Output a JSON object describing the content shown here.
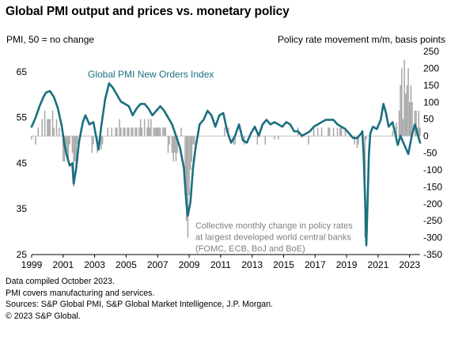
{
  "title": "Global PMI output and prices vs. monetary policy",
  "left_axis_label": "PMI, 50 = no change",
  "right_axis_label": "Policy rate movement  m/m, basis points",
  "series_label": "Global PMI New Orders Index",
  "annotation_lines": [
    "Collective monthly change in policy rates",
    "at largest developed world central banks",
    "(FOMC, ECB, BoJ and BoE)"
  ],
  "notes": [
    "Data compiled October 2023.",
    "PMI covers manufacturing and services.",
    "Sources: S&P Global PMI, S&P Global Market Intelligence, J.P. Morgan.",
    "© 2023 S&P Global."
  ],
  "colors": {
    "line": "#1a6f80",
    "bars": "#a6a6a6",
    "zero_line": "#bfbfbf",
    "annotation_text": "#808080",
    "series_label_text": "#1a6f80"
  },
  "chart_data": {
    "type": "line+bar",
    "x_tick_labels": [
      "1999",
      "2001",
      "2003",
      "2005",
      "2007",
      "2009",
      "2011",
      "2013",
      "2015",
      "2017",
      "2019",
      "2021",
      "2023"
    ],
    "x_range": [
      "1999-01",
      "2023-09"
    ],
    "left_axis": {
      "ticks": [
        25,
        35,
        45,
        55,
        65
      ],
      "range": [
        25,
        69.5
      ]
    },
    "right_axis": {
      "ticks": [
        -350,
        -300,
        -250,
        -200,
        -150,
        -100,
        -50,
        0,
        50,
        100,
        150,
        200,
        250
      ],
      "range": [
        -350,
        250
      ]
    },
    "line_series": {
      "name": "Global PMI New Orders Index",
      "axis": "left",
      "points": [
        [
          "1999-01",
          53.0
        ],
        [
          "1999-04",
          55.0
        ],
        [
          "1999-07",
          57.5
        ],
        [
          "1999-10",
          59.5
        ],
        [
          "1999-12",
          60.5
        ],
        [
          "2000-03",
          60.8
        ],
        [
          "2000-06",
          59.5
        ],
        [
          "2000-09",
          57.0
        ],
        [
          "2000-12",
          53.0
        ],
        [
          "2001-02",
          49.0
        ],
        [
          "2001-04",
          46.5
        ],
        [
          "2001-06",
          44.5
        ],
        [
          "2001-08",
          45.0
        ],
        [
          "2001-09",
          40.5
        ],
        [
          "2001-11",
          44.0
        ],
        [
          "2002-01",
          49.5
        ],
        [
          "2002-04",
          54.0
        ],
        [
          "2002-06",
          55.5
        ],
        [
          "2002-09",
          53.5
        ],
        [
          "2002-12",
          54.0
        ],
        [
          "2003-02",
          51.0
        ],
        [
          "2003-04",
          48.0
        ],
        [
          "2003-06",
          53.0
        ],
        [
          "2003-09",
          59.0
        ],
        [
          "2003-12",
          62.5
        ],
        [
          "2004-03",
          61.5
        ],
        [
          "2004-06",
          60.0
        ],
        [
          "2004-09",
          58.5
        ],
        [
          "2004-12",
          58.0
        ],
        [
          "2005-03",
          57.5
        ],
        [
          "2005-06",
          55.5
        ],
        [
          "2005-09",
          57.0
        ],
        [
          "2005-12",
          58.0
        ],
        [
          "2006-03",
          58.0
        ],
        [
          "2006-06",
          57.0
        ],
        [
          "2006-09",
          55.5
        ],
        [
          "2006-12",
          56.5
        ],
        [
          "2007-03",
          57.5
        ],
        [
          "2007-06",
          56.5
        ],
        [
          "2007-09",
          55.0
        ],
        [
          "2007-12",
          53.5
        ],
        [
          "2008-03",
          51.0
        ],
        [
          "2008-06",
          48.5
        ],
        [
          "2008-09",
          44.0
        ],
        [
          "2008-11",
          36.0
        ],
        [
          "2008-12",
          33.5
        ],
        [
          "2009-02",
          36.5
        ],
        [
          "2009-04",
          44.0
        ],
        [
          "2009-06",
          48.5
        ],
        [
          "2009-09",
          53.5
        ],
        [
          "2009-12",
          54.5
        ],
        [
          "2010-03",
          56.5
        ],
        [
          "2010-06",
          55.5
        ],
        [
          "2010-09",
          53.0
        ],
        [
          "2010-12",
          55.5
        ],
        [
          "2011-03",
          56.0
        ],
        [
          "2011-06",
          52.0
        ],
        [
          "2011-09",
          49.5
        ],
        [
          "2011-12",
          51.0
        ],
        [
          "2012-03",
          53.5
        ],
        [
          "2012-06",
          50.0
        ],
        [
          "2012-09",
          49.5
        ],
        [
          "2012-12",
          51.5
        ],
        [
          "2013-03",
          53.0
        ],
        [
          "2013-06",
          51.0
        ],
        [
          "2013-09",
          53.5
        ],
        [
          "2013-12",
          54.5
        ],
        [
          "2014-03",
          53.5
        ],
        [
          "2014-06",
          54.0
        ],
        [
          "2014-09",
          53.5
        ],
        [
          "2014-12",
          53.0
        ],
        [
          "2015-03",
          54.0
        ],
        [
          "2015-06",
          53.5
        ],
        [
          "2015-09",
          52.0
        ],
        [
          "2015-12",
          52.0
        ],
        [
          "2016-03",
          51.0
        ],
        [
          "2016-06",
          51.5
        ],
        [
          "2016-09",
          52.0
        ],
        [
          "2016-12",
          53.0
        ],
        [
          "2017-03",
          53.5
        ],
        [
          "2017-06",
          54.0
        ],
        [
          "2017-09",
          54.5
        ],
        [
          "2017-12",
          54.5
        ],
        [
          "2018-03",
          54.5
        ],
        [
          "2018-06",
          53.5
        ],
        [
          "2018-09",
          53.0
        ],
        [
          "2018-12",
          52.5
        ],
        [
          "2019-03",
          51.5
        ],
        [
          "2019-06",
          50.5
        ],
        [
          "2019-09",
          50.5
        ],
        [
          "2019-12",
          51.5
        ],
        [
          "2020-01",
          52.0
        ],
        [
          "2020-02",
          46.5
        ],
        [
          "2020-03",
          38.0
        ],
        [
          "2020-04",
          27.0
        ],
        [
          "2020-05",
          36.5
        ],
        [
          "2020-06",
          47.0
        ],
        [
          "2020-07",
          51.5
        ],
        [
          "2020-09",
          53.0
        ],
        [
          "2020-12",
          52.5
        ],
        [
          "2021-03",
          54.5
        ],
        [
          "2021-05",
          58.0
        ],
        [
          "2021-07",
          56.0
        ],
        [
          "2021-09",
          53.0
        ],
        [
          "2021-12",
          54.0
        ],
        [
          "2022-02",
          51.5
        ],
        [
          "2022-04",
          49.0
        ],
        [
          "2022-06",
          51.0
        ],
        [
          "2022-09",
          49.0
        ],
        [
          "2022-12",
          47.0
        ],
        [
          "2023-03",
          51.5
        ],
        [
          "2023-05",
          53.5
        ],
        [
          "2023-07",
          51.5
        ],
        [
          "2023-09",
          49.5
        ]
      ]
    },
    "bar_series": {
      "name": "Collective monthly change in policy rates at largest developed world central banks (FOMC, ECB, BoJ and BoE)",
      "axis": "right",
      "bars": [
        [
          "1999-01",
          -10
        ],
        [
          "1999-04",
          -25
        ],
        [
          "1999-06",
          25
        ],
        [
          "1999-09",
          50
        ],
        [
          "1999-11",
          75
        ],
        [
          "2000-01",
          50
        ],
        [
          "2000-02",
          50
        ],
        [
          "2000-03",
          50
        ],
        [
          "2000-05",
          75
        ],
        [
          "2000-06",
          25
        ],
        [
          "2000-08",
          50
        ],
        [
          "2000-10",
          25
        ],
        [
          "2001-01",
          -75
        ],
        [
          "2001-02",
          -75
        ],
        [
          "2001-03",
          -50
        ],
        [
          "2001-04",
          -50
        ],
        [
          "2001-05",
          -75
        ],
        [
          "2001-06",
          -25
        ],
        [
          "2001-08",
          -50
        ],
        [
          "2001-09",
          -150
        ],
        [
          "2001-10",
          -75
        ],
        [
          "2001-11",
          -100
        ],
        [
          "2001-12",
          -25
        ],
        [
          "2002-11",
          -50
        ],
        [
          "2002-12",
          -25
        ],
        [
          "2003-03",
          -50
        ],
        [
          "2003-06",
          -40
        ],
        [
          "2003-07",
          -25
        ],
        [
          "2003-11",
          25
        ],
        [
          "2004-02",
          25
        ],
        [
          "2004-05",
          25
        ],
        [
          "2004-06",
          25
        ],
        [
          "2004-08",
          50
        ],
        [
          "2004-09",
          25
        ],
        [
          "2004-11",
          25
        ],
        [
          "2004-12",
          25
        ],
        [
          "2005-02",
          25
        ],
        [
          "2005-03",
          25
        ],
        [
          "2005-05",
          25
        ],
        [
          "2005-06",
          25
        ],
        [
          "2005-08",
          25
        ],
        [
          "2005-09",
          25
        ],
        [
          "2005-11",
          25
        ],
        [
          "2005-12",
          50
        ],
        [
          "2006-01",
          25
        ],
        [
          "2006-03",
          50
        ],
        [
          "2006-05",
          25
        ],
        [
          "2006-06",
          50
        ],
        [
          "2006-07",
          25
        ],
        [
          "2006-08",
          50
        ],
        [
          "2006-10",
          25
        ],
        [
          "2006-11",
          25
        ],
        [
          "2006-12",
          25
        ],
        [
          "2007-01",
          25
        ],
        [
          "2007-02",
          25
        ],
        [
          "2007-03",
          25
        ],
        [
          "2007-05",
          25
        ],
        [
          "2007-06",
          25
        ],
        [
          "2007-07",
          25
        ],
        [
          "2007-09",
          -50
        ],
        [
          "2007-10",
          -25
        ],
        [
          "2007-12",
          -50
        ],
        [
          "2008-01",
          -75
        ],
        [
          "2008-02",
          -50
        ],
        [
          "2008-03",
          -75
        ],
        [
          "2008-04",
          -50
        ],
        [
          "2008-07",
          25
        ],
        [
          "2008-10",
          -175
        ],
        [
          "2008-11",
          -250
        ],
        [
          "2008-12",
          -300
        ],
        [
          "2009-01",
          -175
        ],
        [
          "2009-02",
          -100
        ],
        [
          "2009-03",
          -75
        ],
        [
          "2009-04",
          -25
        ],
        [
          "2009-05",
          -25
        ],
        [
          "2011-04",
          25
        ],
        [
          "2011-07",
          25
        ],
        [
          "2011-11",
          -25
        ],
        [
          "2011-12",
          -25
        ],
        [
          "2012-07",
          -25
        ],
        [
          "2013-05",
          -25
        ],
        [
          "2013-11",
          -25
        ],
        [
          "2014-06",
          -10
        ],
        [
          "2014-09",
          -10
        ],
        [
          "2015-12",
          25
        ],
        [
          "2016-03",
          -5
        ],
        [
          "2016-08",
          -25
        ],
        [
          "2016-12",
          25
        ],
        [
          "2017-03",
          25
        ],
        [
          "2017-06",
          25
        ],
        [
          "2017-11",
          25
        ],
        [
          "2017-12",
          25
        ],
        [
          "2018-03",
          25
        ],
        [
          "2018-06",
          25
        ],
        [
          "2018-08",
          25
        ],
        [
          "2018-09",
          25
        ],
        [
          "2018-12",
          25
        ],
        [
          "2019-07",
          -25
        ],
        [
          "2019-09",
          -35
        ],
        [
          "2019-10",
          -25
        ],
        [
          "2020-03",
          -300
        ],
        [
          "2020-04",
          -10
        ],
        [
          "2021-12",
          15
        ],
        [
          "2022-02",
          25
        ],
        [
          "2022-03",
          40
        ],
        [
          "2022-05",
          75
        ],
        [
          "2022-06",
          150
        ],
        [
          "2022-07",
          200
        ],
        [
          "2022-08",
          50
        ],
        [
          "2022-09",
          225
        ],
        [
          "2022-10",
          125
        ],
        [
          "2022-11",
          150
        ],
        [
          "2022-12",
          200
        ],
        [
          "2023-01",
          100
        ],
        [
          "2023-02",
          150
        ],
        [
          "2023-03",
          100
        ],
        [
          "2023-05",
          75
        ],
        [
          "2023-06",
          75
        ],
        [
          "2023-07",
          25
        ],
        [
          "2023-08",
          75
        ],
        [
          "2023-09",
          25
        ]
      ]
    }
  }
}
